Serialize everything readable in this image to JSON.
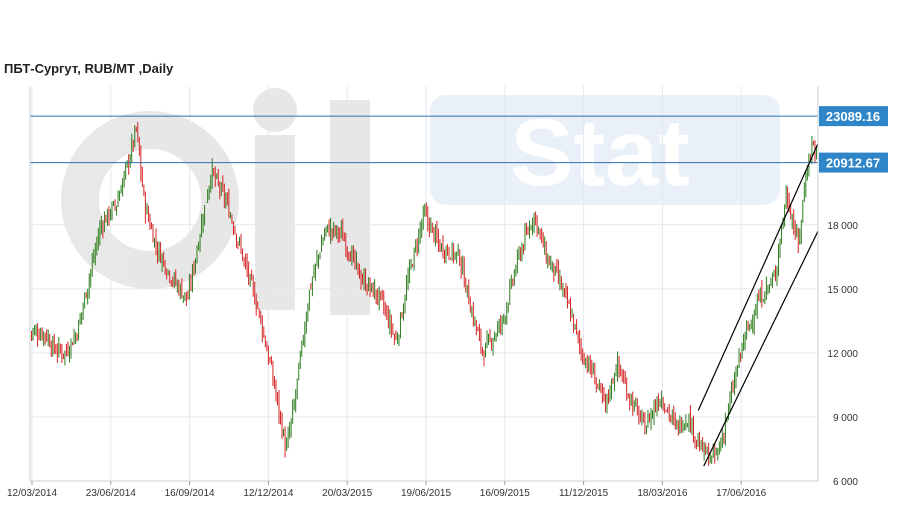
{
  "chart_data": {
    "type": "candlestick",
    "title": "ПБТ-Сургут,  RUB/MT ,Daily",
    "ylim": [
      6000,
      24500
    ],
    "yticks": [
      {
        "value": 6000,
        "label": "6 000"
      },
      {
        "value": 9000,
        "label": "9 000"
      },
      {
        "value": 12000,
        "label": "12 000"
      },
      {
        "value": 15000,
        "label": "15 000"
      },
      {
        "value": 18000,
        "label": "18 000"
      }
    ],
    "xticks": [
      "12/03/2014",
      "23/06/2014",
      "16/09/2014",
      "12/12/2014",
      "20/03/2015",
      "19/06/2015",
      "16/09/2015",
      "11/12/2015",
      "18/03/2016",
      "17/06/2016"
    ],
    "grid": true,
    "watermark": "Oil Stat",
    "colors": {
      "up": "#2e7d1e",
      "down": "#d42424",
      "hline": "#2f6fb3",
      "label_bg": "#2e86c9",
      "trend": "#000000"
    },
    "horizontal_levels": [
      {
        "value": 23089.16,
        "label": "23089.16"
      },
      {
        "value": 20912.67,
        "label": "20912.67"
      }
    ],
    "price_path": [
      {
        "x": 0.0,
        "y": 13000
      },
      {
        "x": 0.02,
        "y": 12900
      },
      {
        "x": 0.03,
        "y": 12200
      },
      {
        "x": 0.045,
        "y": 12000
      },
      {
        "x": 0.06,
        "y": 13000
      },
      {
        "x": 0.075,
        "y": 15500
      },
      {
        "x": 0.09,
        "y": 18000
      },
      {
        "x": 0.11,
        "y": 19000
      },
      {
        "x": 0.125,
        "y": 21000
      },
      {
        "x": 0.135,
        "y": 22500
      },
      {
        "x": 0.145,
        "y": 19000
      },
      {
        "x": 0.16,
        "y": 17000
      },
      {
        "x": 0.18,
        "y": 15500
      },
      {
        "x": 0.2,
        "y": 14500
      },
      {
        "x": 0.215,
        "y": 17500
      },
      {
        "x": 0.23,
        "y": 20500
      },
      {
        "x": 0.25,
        "y": 19000
      },
      {
        "x": 0.27,
        "y": 16500
      },
      {
        "x": 0.29,
        "y": 14000
      },
      {
        "x": 0.31,
        "y": 10500
      },
      {
        "x": 0.325,
        "y": 7400
      },
      {
        "x": 0.335,
        "y": 9500
      },
      {
        "x": 0.355,
        "y": 15000
      },
      {
        "x": 0.375,
        "y": 17800
      },
      {
        "x": 0.395,
        "y": 17600
      },
      {
        "x": 0.42,
        "y": 15500
      },
      {
        "x": 0.445,
        "y": 14500
      },
      {
        "x": 0.465,
        "y": 12500
      },
      {
        "x": 0.48,
        "y": 15500
      },
      {
        "x": 0.5,
        "y": 18500
      },
      {
        "x": 0.52,
        "y": 17000
      },
      {
        "x": 0.545,
        "y": 16500
      },
      {
        "x": 0.56,
        "y": 14000
      },
      {
        "x": 0.575,
        "y": 12000
      },
      {
        "x": 0.6,
        "y": 13500
      },
      {
        "x": 0.62,
        "y": 16500
      },
      {
        "x": 0.64,
        "y": 18500
      },
      {
        "x": 0.655,
        "y": 16500
      },
      {
        "x": 0.67,
        "y": 15500
      },
      {
        "x": 0.685,
        "y": 14000
      },
      {
        "x": 0.7,
        "y": 12000
      },
      {
        "x": 0.715,
        "y": 11000
      },
      {
        "x": 0.73,
        "y": 9500
      },
      {
        "x": 0.745,
        "y": 11500
      },
      {
        "x": 0.76,
        "y": 10000
      },
      {
        "x": 0.78,
        "y": 8500
      },
      {
        "x": 0.8,
        "y": 10000
      },
      {
        "x": 0.82,
        "y": 8500
      },
      {
        "x": 0.835,
        "y": 9000
      },
      {
        "x": 0.85,
        "y": 7600
      },
      {
        "x": 0.865,
        "y": 7000
      },
      {
        "x": 0.875,
        "y": 7500
      },
      {
        "x": 0.89,
        "y": 10000
      },
      {
        "x": 0.905,
        "y": 12500
      },
      {
        "x": 0.925,
        "y": 14500
      },
      {
        "x": 0.945,
        "y": 15500
      },
      {
        "x": 0.96,
        "y": 19500
      },
      {
        "x": 0.975,
        "y": 17000
      },
      {
        "x": 0.985,
        "y": 20500
      },
      {
        "x": 0.993,
        "y": 21800
      },
      {
        "x": 1.0,
        "y": 21200
      }
    ],
    "trend_lines": [
      {
        "x1": 0.848,
        "y1": 9300,
        "x2": 1.0,
        "y2": 21800
      },
      {
        "x1": 0.855,
        "y1": 6700,
        "x2": 1.0,
        "y2": 17700
      }
    ]
  }
}
